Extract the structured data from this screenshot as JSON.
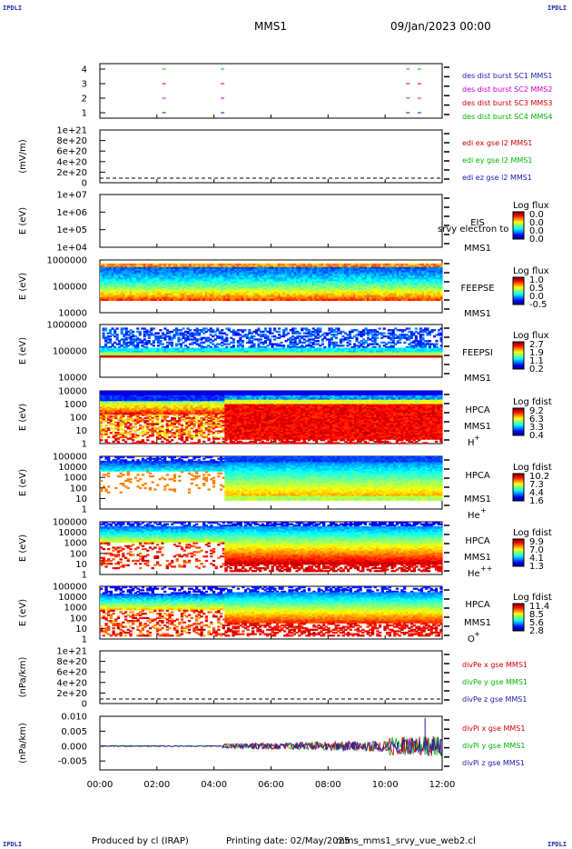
{
  "corner_labels": {
    "tl": "IPDLI",
    "tr": "IPDLI",
    "bl": "IPDLI",
    "br": "IPDLI"
  },
  "header": {
    "mission": "MMS1",
    "date": "09/Jan/2023 00:00"
  },
  "footer": {
    "produced_by": "Produced by cl (IRAP)",
    "printing_date": "Printing date: 02/May/2025",
    "script": "mms_mms1_srvy_vue_web2.cl"
  },
  "colors": {
    "mms1": "#1a1ab4",
    "mms2": "#c800c8",
    "mms3": "#d20000",
    "mms4": "#00b400",
    "x": "#d20000",
    "y": "#00b400",
    "z": "#1a1ab4"
  },
  "chart_data": [
    {
      "type": "scatter",
      "name": "des_dist_burst",
      "ylabel": "",
      "yticks": [
        "1",
        "2",
        "3",
        "4"
      ],
      "ylim": [
        0.6,
        4.4
      ],
      "legend": [
        "des dist burst SC1 MMS1",
        "des dist burst SC2 MMS2",
        "des dist burst SC3 MMS3",
        "des dist burst SC4 MMS4"
      ],
      "series": [
        {
          "sc": 1,
          "x": [
            2.25,
            4.3,
            10.8,
            11.2
          ]
        },
        {
          "sc": 2,
          "x": [
            2.25,
            4.3,
            10.8,
            11.2
          ]
        },
        {
          "sc": 3,
          "x": [
            2.25,
            4.3,
            10.8,
            11.2
          ]
        },
        {
          "sc": 4,
          "x": [
            2.25,
            4.3,
            10.8,
            11.2
          ]
        }
      ]
    },
    {
      "type": "line",
      "name": "edi",
      "ylabel": "(mV/m)",
      "yticks": [
        "0",
        "2e+20",
        "4e+20",
        "6e+20",
        "8e+20",
        "1e+21"
      ],
      "legend": [
        "edi ex gse l2 MMS1",
        "edi ey gse l2 MMS1",
        "edi ez gse l2 MMS1"
      ],
      "zero_line": true
    },
    {
      "type": "heatmap",
      "name": "eis",
      "ylabel": "E (eV)",
      "yticks": [
        "1e+04",
        "1e+05",
        "1e+06",
        "1e+07"
      ],
      "instrument": [
        "EIS",
        "MMS1"
      ],
      "overlay_text": "srvy electron to",
      "colorbar": {
        "title": "Log flux",
        "ticks": [
          "0.0",
          "0.0",
          "0.0",
          "0.0"
        ]
      },
      "empty": true
    },
    {
      "type": "heatmap",
      "name": "feeps_e",
      "ylabel": "E (eV)",
      "yticks": [
        "10000",
        "100000",
        "1000000"
      ],
      "instrument": [
        "FEEPSE",
        "MMS1"
      ],
      "colorbar": {
        "title": "Log flux",
        "ticks": [
          "1.0",
          "0.5",
          "0.0",
          "-0.5"
        ]
      }
    },
    {
      "type": "heatmap",
      "name": "feeps_i",
      "ylabel": "E (eV)",
      "yticks": [
        "10000",
        "100000",
        "1000000"
      ],
      "instrument": [
        "FEEPSI",
        "MMS1"
      ],
      "colorbar": {
        "title": "Log flux",
        "ticks": [
          "2.7",
          "1.9",
          "1.1",
          "0.2"
        ]
      }
    },
    {
      "type": "heatmap",
      "name": "hpca_h",
      "ylabel": "E (eV)",
      "yticks": [
        "1",
        "10",
        "100",
        "1000",
        "10000"
      ],
      "instrument": [
        "HPCA",
        "MMS1"
      ],
      "species": "H",
      "species_charge": "+",
      "colorbar": {
        "title": "Log fdist",
        "ticks": [
          "9.2",
          "6.3",
          "3.3",
          "0.4"
        ]
      }
    },
    {
      "type": "heatmap",
      "name": "hpca_he1",
      "ylabel": "E (eV)",
      "yticks": [
        "1",
        "10",
        "100",
        "1000",
        "10000",
        "100000"
      ],
      "instrument": [
        "HPCA",
        "MMS1"
      ],
      "species": "He",
      "species_charge": "+",
      "colorbar": {
        "title": "Log fdist",
        "ticks": [
          "10.2",
          "7.3",
          "4.4",
          "1.6"
        ]
      }
    },
    {
      "type": "heatmap",
      "name": "hpca_he2",
      "ylabel": "E (eV)",
      "yticks": [
        "1",
        "10",
        "100",
        "1000",
        "10000",
        "100000"
      ],
      "instrument": [
        "HPCA",
        "MMS1"
      ],
      "species": "He",
      "species_charge": "++",
      "colorbar": {
        "title": "Log fdist",
        "ticks": [
          "9.9",
          "7.0",
          "4.1",
          "1.3"
        ]
      }
    },
    {
      "type": "heatmap",
      "name": "hpca_o",
      "ylabel": "E (eV)",
      "yticks": [
        "1",
        "10",
        "100",
        "1000",
        "10000",
        "100000"
      ],
      "instrument": [
        "HPCA",
        "MMS1"
      ],
      "species": "O",
      "species_charge": "+",
      "colorbar": {
        "title": "Log fdist",
        "ticks": [
          "11.4",
          "8.5",
          "5.6",
          "2.8"
        ]
      }
    },
    {
      "type": "line",
      "name": "divpe",
      "ylabel": "(nPa/km)",
      "yticks": [
        "0",
        "2e+20",
        "4e+20",
        "6e+20",
        "8e+20",
        "1e+21"
      ],
      "legend": [
        "divPe x gse MMS1",
        "divPe y gse MMS1",
        "divPe z gse MMS1"
      ],
      "zero_line": true
    },
    {
      "type": "line",
      "name": "divpi",
      "ylabel": "(nPa/km)",
      "yticks": [
        "-0.005",
        "0.000",
        "0.005",
        "0.010"
      ],
      "ylim": [
        -0.008,
        0.01
      ],
      "legend": [
        "divPi x gse MMS1",
        "divPi y gse MMS1",
        "divPi z gse MMS1"
      ],
      "x_transition": 4.3,
      "x_spike": 11.4
    }
  ],
  "x_axis": {
    "type": "time",
    "start": "00:00",
    "end": "12:00",
    "ticks": [
      "00:00",
      "02:00",
      "04:00",
      "06:00",
      "08:00",
      "10:00",
      "12:00"
    ],
    "transition_time": "04:17"
  }
}
